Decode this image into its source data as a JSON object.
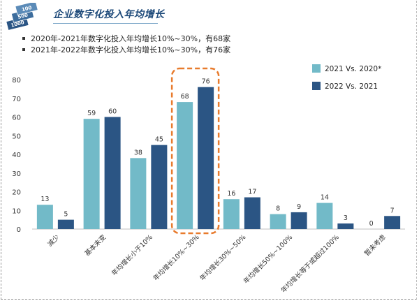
{
  "header": {
    "title": "企业数字化投入年均增长",
    "logo_labels": [
      "100",
      "500",
      "1000"
    ]
  },
  "notes": [
    "2020年-2021年数字化投入年均增长10%~30%，有68家",
    "2021年-2022年数字化投入年均增长10%~30%，有76家"
  ],
  "colors": {
    "series_a": "#72bac8",
    "series_b": "#2b5584",
    "highlight": "#e87b2d",
    "title": "#1e4a7a"
  },
  "chart_data": {
    "type": "bar",
    "title": "",
    "xlabel": "",
    "ylabel": "",
    "categories": [
      "减少",
      "基本未变",
      "年均增长小于10%",
      "年均增长10%~30%",
      "年均增长30%~50%",
      "年均增长50%~100%",
      "年均增长等于或超过100%",
      "暂未考虑"
    ],
    "series": [
      {
        "name": "2021 Vs. 2020*",
        "values": [
          13,
          59,
          38,
          68,
          16,
          8,
          14,
          0
        ]
      },
      {
        "name": "2022 Vs. 2021",
        "values": [
          5,
          60,
          45,
          76,
          17,
          9,
          3,
          7
        ]
      }
    ],
    "ylim": [
      0,
      80
    ],
    "yticks": [
      0,
      10,
      20,
      30,
      40,
      50,
      60,
      70,
      80
    ],
    "highlight_category": "年均增长10%~30%",
    "legend_position": "top-right",
    "grid": false
  }
}
